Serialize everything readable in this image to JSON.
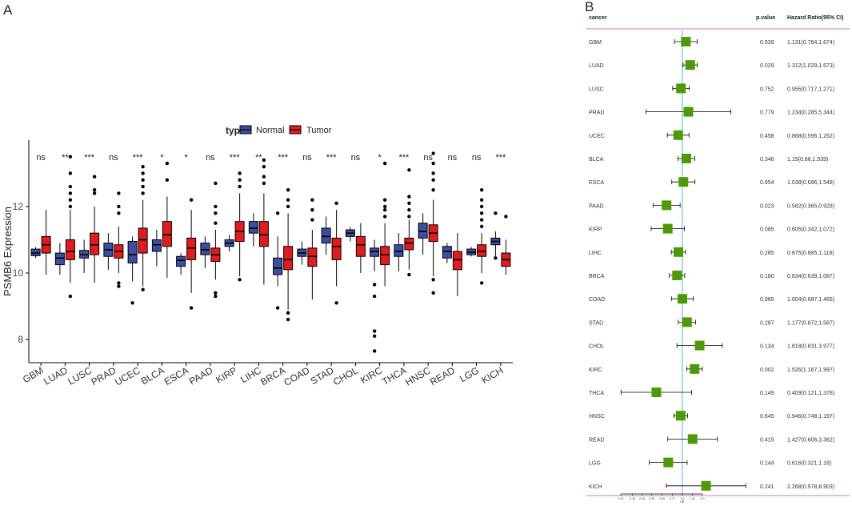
{
  "panel_a": {
    "label": "A",
    "legend": {
      "title": "type",
      "normal": "Normal",
      "tumor": "Tumor"
    },
    "colors": {
      "normal": "#3b4ea3",
      "tumor": "#e41a1c"
    }
  },
  "panel_b": {
    "label": "B",
    "header": {
      "cancer": "cancer",
      "pvalue": "p.value",
      "hr": "Hazard Ratio(95% CI)"
    },
    "colors": {
      "box": "#4e9a06",
      "line": "#4fb8c8",
      "rule": "#c07ac0"
    }
  },
  "chart_data": [
    {
      "type": "box",
      "ylabel": "PSMB6 Expression",
      "ylim": [
        7.3,
        14.0
      ],
      "yticks": [
        8,
        10,
        12
      ],
      "categories": [
        "GBM",
        "LUAD",
        "LUSC",
        "PRAD",
        "UCEC",
        "BLCA",
        "ESCA",
        "PAAD",
        "KIRP",
        "LIHC",
        "BRCA",
        "COAD",
        "STAD",
        "CHOL",
        "KIRC",
        "THCA",
        "HNSC",
        "READ",
        "LGG",
        "KICH"
      ],
      "significance": [
        "ns",
        "**",
        "***",
        "ns",
        "***",
        "*",
        "*",
        "ns",
        "***",
        "**",
        "***",
        "ns",
        "***",
        "ns",
        "*",
        "***",
        "ns",
        "ns",
        "ns",
        "***"
      ],
      "series": [
        {
          "name": "Normal",
          "boxes": [
            {
              "whislo": 10.45,
              "q1": 10.52,
              "med": 10.6,
              "q3": 10.72,
              "whishi": 10.78,
              "outliers": []
            },
            {
              "whislo": 9.95,
              "q1": 10.25,
              "med": 10.45,
              "q3": 10.6,
              "whishi": 10.9,
              "outliers": []
            },
            {
              "whislo": 10.0,
              "q1": 10.45,
              "med": 10.55,
              "q3": 10.68,
              "whishi": 11.0,
              "outliers": []
            },
            {
              "whislo": 10.1,
              "q1": 10.5,
              "med": 10.7,
              "q3": 10.9,
              "whishi": 11.2,
              "outliers": []
            },
            {
              "whislo": 9.75,
              "q1": 10.3,
              "med": 10.55,
              "q3": 10.95,
              "whishi": 11.1,
              "outliers": [
                9.1
              ]
            },
            {
              "whislo": 10.2,
              "q1": 10.65,
              "med": 10.85,
              "q3": 11.0,
              "whishi": 11.3,
              "outliers": []
            },
            {
              "whislo": 9.95,
              "q1": 10.2,
              "med": 10.38,
              "q3": 10.5,
              "whishi": 10.6,
              "outliers": []
            },
            {
              "whislo": 10.15,
              "q1": 10.55,
              "med": 10.7,
              "q3": 10.9,
              "whishi": 11.1,
              "outliers": []
            },
            {
              "whislo": 10.65,
              "q1": 10.8,
              "med": 10.9,
              "q3": 11.0,
              "whishi": 11.15,
              "outliers": []
            },
            {
              "whislo": 10.8,
              "q1": 11.2,
              "med": 11.35,
              "q3": 11.55,
              "whishi": 11.8,
              "outliers": []
            },
            {
              "whislo": 9.6,
              "q1": 9.95,
              "med": 10.15,
              "q3": 10.45,
              "whishi": 11.1,
              "outliers": [
                8.95,
                11.8
              ]
            },
            {
              "whislo": 10.25,
              "q1": 10.5,
              "med": 10.6,
              "q3": 10.72,
              "whishi": 10.95,
              "outliers": []
            },
            {
              "whislo": 10.55,
              "q1": 10.9,
              "med": 11.1,
              "q3": 11.35,
              "whishi": 11.7,
              "outliers": []
            },
            {
              "whislo": 10.95,
              "q1": 11.1,
              "med": 11.2,
              "q3": 11.3,
              "whishi": 11.38,
              "outliers": []
            },
            {
              "whislo": 10.05,
              "q1": 10.5,
              "med": 10.65,
              "q3": 10.75,
              "whishi": 11.0,
              "outliers": [
                9.65,
                9.3,
                8.25,
                8.1,
                7.65
              ]
            },
            {
              "whislo": 10.05,
              "q1": 10.5,
              "med": 10.65,
              "q3": 10.85,
              "whishi": 11.2,
              "outliers": []
            },
            {
              "whislo": 10.55,
              "q1": 11.05,
              "med": 11.25,
              "q3": 11.5,
              "whishi": 11.8,
              "outliers": []
            },
            {
              "whislo": 10.3,
              "q1": 10.45,
              "med": 10.65,
              "q3": 10.8,
              "whishi": 10.9,
              "outliers": []
            },
            {
              "whislo": 10.5,
              "q1": 10.55,
              "med": 10.62,
              "q3": 10.72,
              "whishi": 10.78,
              "outliers": []
            },
            {
              "whislo": 10.5,
              "q1": 10.85,
              "med": 10.95,
              "q3": 11.05,
              "whishi": 11.25,
              "outliers": [
                11.8,
                10.45
              ]
            }
          ]
        },
        {
          "name": "Tumor",
          "boxes": [
            {
              "whislo": 9.95,
              "q1": 10.6,
              "med": 10.85,
              "q3": 11.1,
              "whishi": 11.9,
              "outliers": []
            },
            {
              "whislo": 9.7,
              "q1": 10.4,
              "med": 10.65,
              "q3": 11.0,
              "whishi": 11.9,
              "outliers": [
                9.3,
                12.0,
                12.2,
                12.4,
                12.6,
                13.0,
                13.5
              ]
            },
            {
              "whislo": 9.7,
              "q1": 10.55,
              "med": 10.85,
              "q3": 11.2,
              "whishi": 12.0,
              "outliers": [
                12.4,
                12.5,
                12.9
              ]
            },
            {
              "whislo": 10.0,
              "q1": 10.45,
              "med": 10.65,
              "q3": 10.85,
              "whishi": 11.4,
              "outliers": [
                9.7,
                9.6,
                11.8,
                12.0,
                12.4
              ]
            },
            {
              "whislo": 9.6,
              "q1": 10.6,
              "med": 11.0,
              "q3": 11.35,
              "whishi": 12.2,
              "outliers": [
                9.5,
                12.4,
                12.6,
                12.8,
                13.0,
                13.2
              ]
            },
            {
              "whislo": 9.85,
              "q1": 10.8,
              "med": 11.15,
              "q3": 11.55,
              "whishi": 12.3,
              "outliers": [
                12.8,
                13.3
              ]
            },
            {
              "whislo": 9.4,
              "q1": 10.4,
              "med": 10.75,
              "q3": 11.05,
              "whishi": 11.9,
              "outliers": [
                8.95,
                12.2
              ]
            },
            {
              "whislo": 9.8,
              "q1": 10.35,
              "med": 10.55,
              "q3": 10.75,
              "whishi": 11.3,
              "outliers": [
                9.4,
                9.3,
                11.5,
                11.8,
                12.0,
                12.7
              ]
            },
            {
              "whislo": 9.9,
              "q1": 10.95,
              "med": 11.25,
              "q3": 11.55,
              "whishi": 12.4,
              "outliers": [
                9.8,
                12.6,
                12.8,
                13.0
              ]
            },
            {
              "whislo": 9.65,
              "q1": 10.8,
              "med": 11.15,
              "q3": 11.55,
              "whishi": 12.4,
              "outliers": [
                12.7,
                12.9,
                13.2,
                13.4
              ]
            },
            {
              "whislo": 8.9,
              "q1": 10.1,
              "med": 10.4,
              "q3": 10.8,
              "whishi": 11.8,
              "outliers": [
                8.8,
                8.6,
                12.0,
                12.2,
                12.5
              ]
            },
            {
              "whislo": 9.2,
              "q1": 10.2,
              "med": 10.5,
              "q3": 10.75,
              "whishi": 11.3,
              "outliers": [
                11.6,
                11.9,
                12.2
              ]
            },
            {
              "whislo": 9.6,
              "q1": 10.4,
              "med": 10.8,
              "q3": 11.05,
              "whishi": 11.9,
              "outliers": [
                9.1,
                12.1
              ]
            },
            {
              "whislo": 10.0,
              "q1": 10.5,
              "med": 10.85,
              "q3": 11.1,
              "whishi": 11.5,
              "outliers": []
            },
            {
              "whislo": 9.6,
              "q1": 10.25,
              "med": 10.55,
              "q3": 10.8,
              "whishi": 11.5,
              "outliers": [
                11.7,
                11.9,
                12.0,
                12.2,
                13.3
              ]
            },
            {
              "whislo": 10.1,
              "q1": 10.7,
              "med": 10.9,
              "q3": 11.05,
              "whishi": 11.6,
              "outliers": [
                9.95,
                11.7,
                11.9,
                12.1,
                12.3,
                13.1
              ]
            },
            {
              "whislo": 9.9,
              "q1": 10.95,
              "med": 11.2,
              "q3": 11.45,
              "whishi": 12.2,
              "outliers": [
                9.4,
                9.8,
                12.5,
                12.8,
                13.0,
                13.3,
                13.6
              ]
            },
            {
              "whislo": 9.3,
              "q1": 10.1,
              "med": 10.4,
              "q3": 10.65,
              "whishi": 11.2,
              "outliers": []
            },
            {
              "whislo": 10.0,
              "q1": 10.5,
              "med": 10.65,
              "q3": 10.85,
              "whishi": 11.2,
              "outliers": [
                9.7,
                11.4,
                11.6,
                11.8,
                12.0,
                12.2,
                12.5
              ]
            },
            {
              "whislo": 9.95,
              "q1": 10.2,
              "med": 10.4,
              "q3": 10.6,
              "whishi": 11.0,
              "outliers": [
                11.7
              ]
            }
          ]
        }
      ]
    },
    {
      "type": "forest",
      "xlabel": "HR",
      "xticks": [
        "0.12",
        "0.18",
        "0.25",
        "0.35",
        "0.50",
        "0.71",
        "1.0",
        "1.41",
        "2.0"
      ],
      "reference": 1.0,
      "rows": [
        {
          "cancer": "GBM",
          "pvalue": "0.539",
          "hr_text": "1.131(0.764,1.674)",
          "hr": 1.131,
          "lo": 0.764,
          "hi": 1.674
        },
        {
          "cancer": "LUAD",
          "pvalue": "0.029",
          "hr_text": "1.312(1.028,1.673)",
          "hr": 1.312,
          "lo": 1.028,
          "hi": 1.673
        },
        {
          "cancer": "LUSC",
          "pvalue": "0.752",
          "hr_text": "0.955(0.717,1.271)",
          "hr": 0.955,
          "lo": 0.717,
          "hi": 1.271
        },
        {
          "cancer": "PRAD",
          "pvalue": "0.779",
          "hr_text": "1.234(0.285,5.344)",
          "hr": 1.234,
          "lo": 0.285,
          "hi": 5.344
        },
        {
          "cancer": "UCEC",
          "pvalue": "0.458",
          "hr_text": "0.868(0.596,1.262)",
          "hr": 0.868,
          "lo": 0.596,
          "hi": 1.262
        },
        {
          "cancer": "BLCA",
          "pvalue": "0.346",
          "hr_text": "1.15(0.86,1.539)",
          "hr": 1.15,
          "lo": 0.86,
          "hi": 1.539
        },
        {
          "cancer": "ESCA",
          "pvalue": "0.854",
          "hr_text": "1.038(0.696,1.548)",
          "hr": 1.038,
          "lo": 0.696,
          "hi": 1.548
        },
        {
          "cancer": "PAAD",
          "pvalue": "0.023",
          "hr_text": "0.582(0.365,0.928)",
          "hr": 0.582,
          "lo": 0.365,
          "hi": 0.928
        },
        {
          "cancer": "KIRP",
          "pvalue": "0.085",
          "hr_text": "0.605(0.342,1.072)",
          "hr": 0.605,
          "lo": 0.342,
          "hi": 1.072
        },
        {
          "cancer": "LIHC",
          "pvalue": "0.285",
          "hr_text": "0.875(0.685,1.118)",
          "hr": 0.875,
          "lo": 0.685,
          "hi": 1.118
        },
        {
          "cancer": "BRCA",
          "pvalue": "0.180",
          "hr_text": "0.834(0.639,1.087)",
          "hr": 0.834,
          "lo": 0.639,
          "hi": 1.087
        },
        {
          "cancer": "COAD",
          "pvalue": "0.985",
          "hr_text": "1.004(0.687,1.465)",
          "hr": 1.004,
          "lo": 0.687,
          "hi": 1.465
        },
        {
          "cancer": "STAD",
          "pvalue": "0.287",
          "hr_text": "1.177(0.872,1.587)",
          "hr": 1.177,
          "lo": 0.872,
          "hi": 1.587
        },
        {
          "cancer": "CHOL",
          "pvalue": "0.134",
          "hr_text": "1.818(0.831,3.977)",
          "hr": 1.818,
          "lo": 0.831,
          "hi": 3.977
        },
        {
          "cancer": "KIRC",
          "pvalue": "0.002",
          "hr_text": "1.526(1.167,1.997)",
          "hr": 1.526,
          "lo": 1.167,
          "hi": 1.997
        },
        {
          "cancer": "THCA",
          "pvalue": "0.149",
          "hr_text": "0.409(0.121,1.378)",
          "hr": 0.409,
          "lo": 0.121,
          "hi": 1.378
        },
        {
          "cancer": "HNSC",
          "pvalue": "0.645",
          "hr_text": "0.946(0.748,1.197)",
          "hr": 0.946,
          "lo": 0.748,
          "hi": 1.197
        },
        {
          "cancer": "READ",
          "pvalue": "0.415",
          "hr_text": "1.427(0.606,3.362)",
          "hr": 1.427,
          "lo": 0.606,
          "hi": 3.362
        },
        {
          "cancer": "LGG",
          "pvalue": "0.144",
          "hr_text": "0.616(0.321,1.18)",
          "hr": 0.616,
          "lo": 0.321,
          "hi": 1.18
        },
        {
          "cancer": "KICH",
          "pvalue": "0.241",
          "hr_text": "2.268(0.578,8.903)",
          "hr": 2.268,
          "lo": 0.578,
          "hi": 8.903
        }
      ]
    }
  ]
}
